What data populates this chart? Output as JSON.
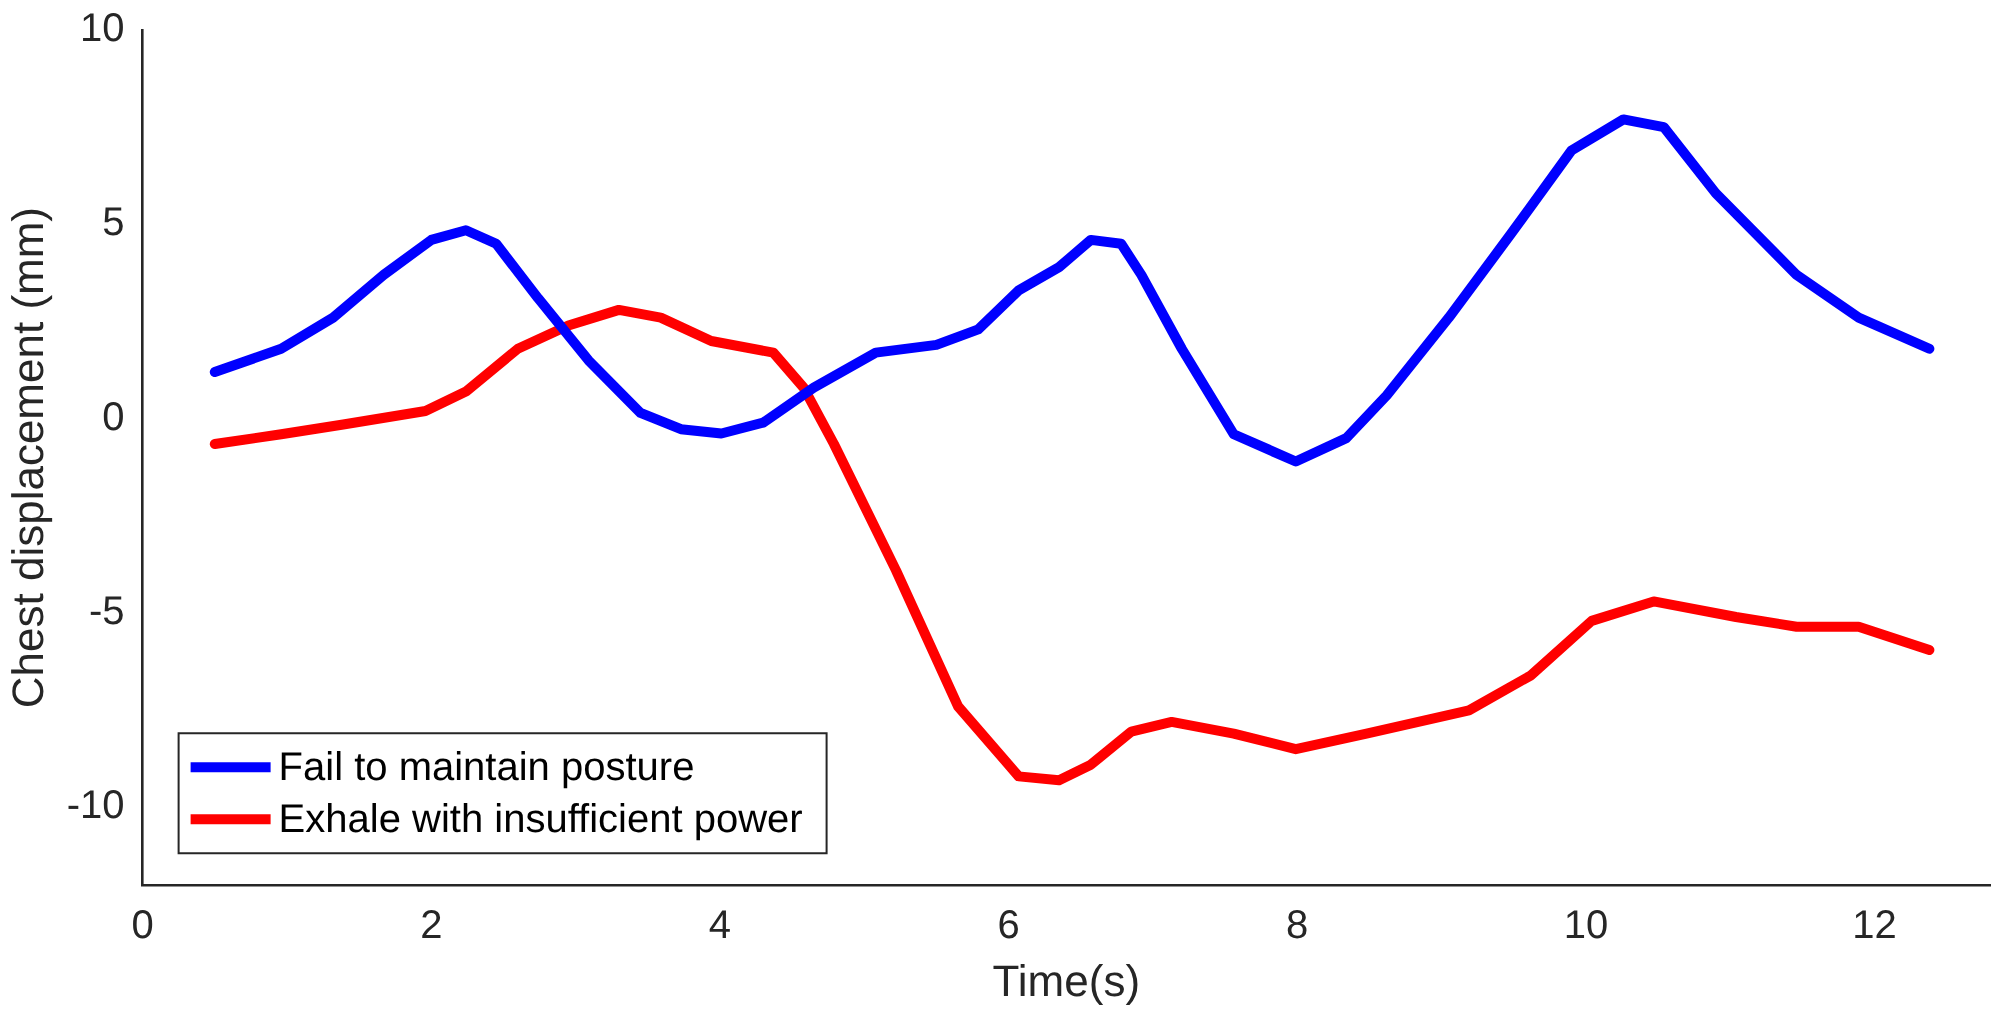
{
  "chart_data": {
    "type": "line",
    "xlabel": "Time(s)",
    "ylabel": "Chest displacement (mm)",
    "xlim": [
      0,
      12.8
    ],
    "xticks": [
      0,
      2,
      4,
      6,
      8,
      10,
      12
    ],
    "ylim": [
      -12,
      10
    ],
    "yticks": [
      -10,
      -5,
      0,
      5,
      10
    ],
    "legend": "bottom left",
    "series": [
      {
        "name": "Fail to maintain posture",
        "color": "#0000ff",
        "x": [
          0.5,
          0.96,
          1.32,
          1.67,
          2.0,
          2.24,
          2.45,
          2.74,
          3.09,
          3.45,
          3.73,
          4.01,
          4.3,
          4.65,
          5.08,
          5.5,
          5.79,
          6.07,
          6.35,
          6.57,
          6.78,
          6.92,
          7.2,
          7.56,
          7.99,
          8.34,
          8.62,
          9.05,
          9.48,
          9.9,
          10.26,
          10.54,
          10.9,
          11.46,
          11.89,
          12.38
        ],
        "values": [
          1.2,
          1.8,
          2.6,
          3.7,
          4.6,
          4.85,
          4.5,
          3.1,
          1.5,
          0.15,
          -0.27,
          -0.38,
          -0.1,
          0.8,
          1.7,
          1.9,
          2.3,
          3.3,
          3.9,
          4.6,
          4.5,
          3.7,
          1.8,
          -0.4,
          -1.1,
          -0.5,
          0.6,
          2.6,
          4.75,
          6.9,
          7.7,
          7.5,
          5.8,
          3.7,
          2.6,
          1.8
        ]
      },
      {
        "name": "Exhale with insufficient power",
        "color": "#ff0000",
        "x": [
          0.5,
          0.96,
          1.39,
          1.96,
          2.24,
          2.6,
          2.95,
          3.3,
          3.59,
          3.94,
          4.37,
          4.58,
          4.79,
          5.22,
          5.65,
          6.07,
          6.35,
          6.57,
          6.85,
          7.13,
          7.56,
          7.99,
          8.48,
          9.19,
          9.62,
          10.04,
          10.47,
          11.04,
          11.46,
          11.89,
          12.38
        ],
        "values": [
          -0.65,
          -0.4,
          -0.15,
          0.2,
          0.7,
          1.8,
          2.4,
          2.8,
          2.6,
          2.0,
          1.7,
          0.8,
          -0.65,
          -3.9,
          -7.4,
          -9.2,
          -9.3,
          -8.9,
          -8.05,
          -7.8,
          -8.1,
          -8.5,
          -8.1,
          -7.5,
          -6.6,
          -5.2,
          -4.7,
          -5.1,
          -5.35,
          -5.35,
          -5.95
        ]
      }
    ]
  }
}
